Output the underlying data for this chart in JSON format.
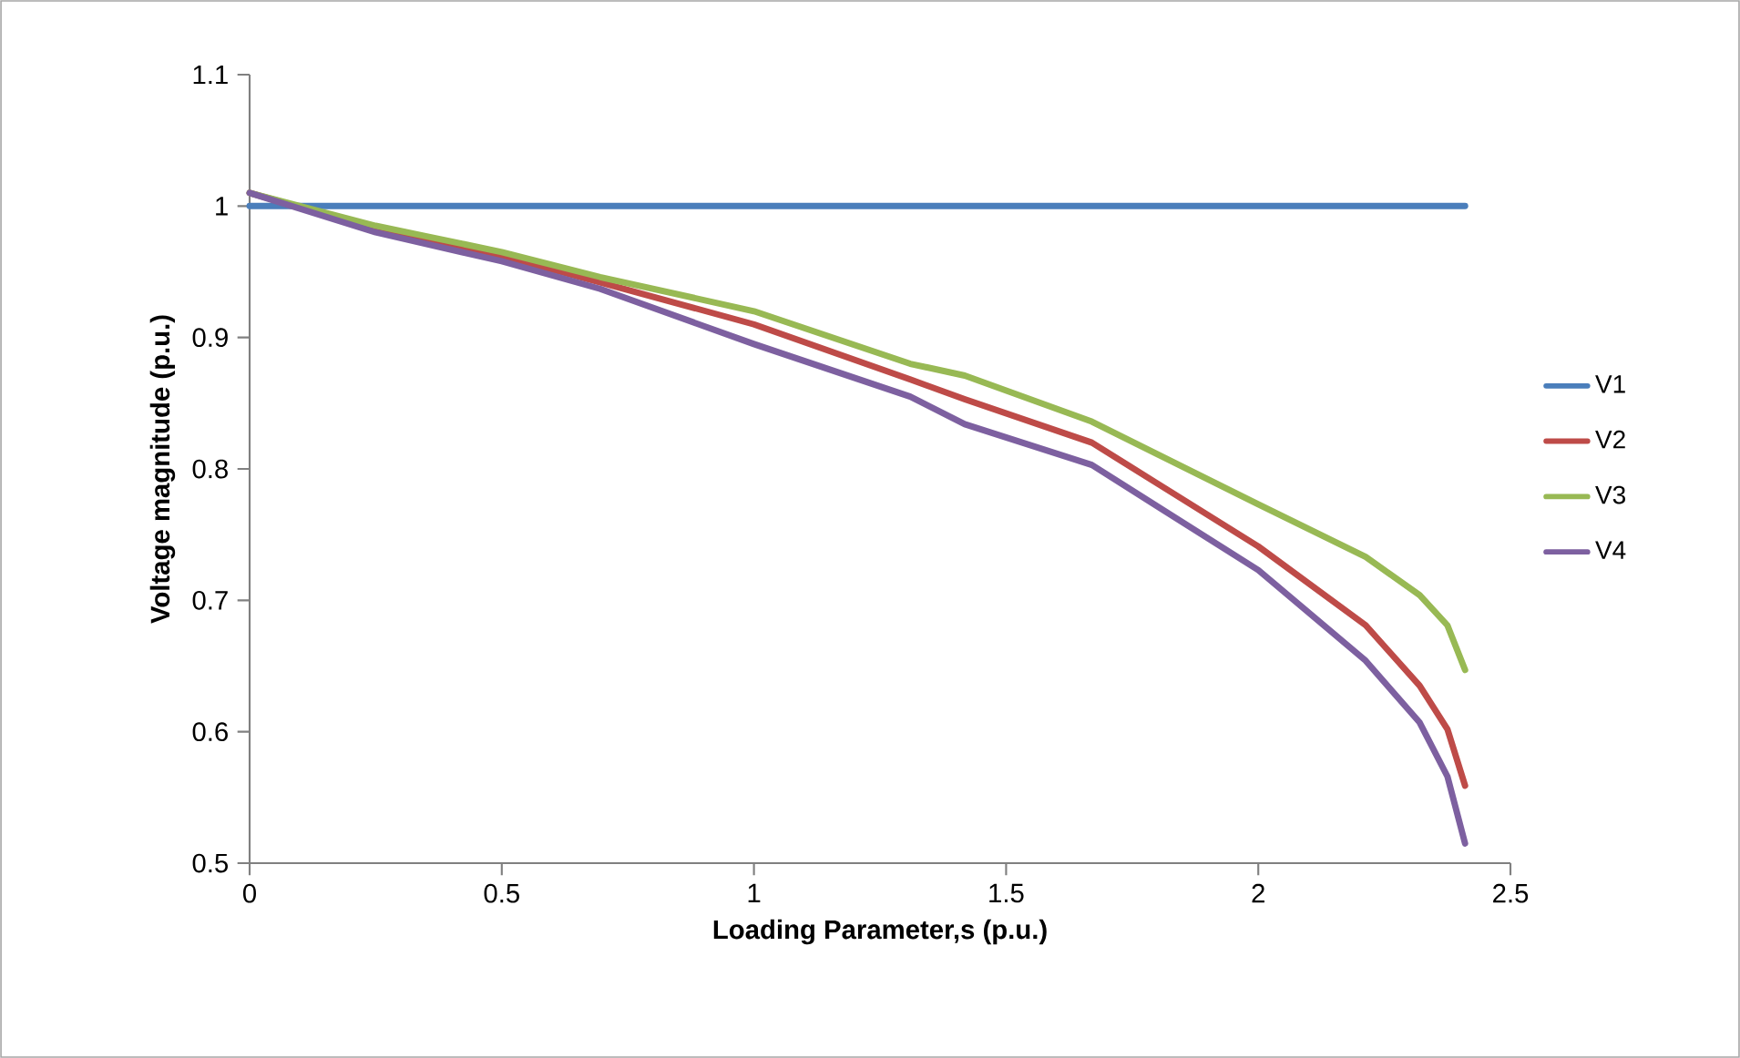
{
  "chart_data": {
    "type": "line",
    "xlabel": "Loading Parameter,s (p.u.)",
    "ylabel": "Voltage magnitude (p.u.)",
    "x": [
      0,
      0.25,
      0.5,
      0.695,
      1.0,
      1.31,
      1.418,
      1.67,
      2.0,
      2.213,
      2.32,
      2.375,
      2.41
    ],
    "series": [
      {
        "name": "V1",
        "color": "#4a7ebb",
        "values": [
          1,
          1,
          1,
          1,
          1,
          1,
          1,
          1,
          1,
          1,
          1,
          1,
          1
        ]
      },
      {
        "name": "V2",
        "color": "#be4b48",
        "values": [
          1.01,
          0.983,
          0.962,
          0.942,
          0.91,
          0.868,
          0.853,
          0.82,
          0.741,
          0.681,
          0.635,
          0.602,
          0.559
        ]
      },
      {
        "name": "V3",
        "color": "#98b954",
        "values": [
          1.01,
          0.985,
          0.965,
          0.946,
          0.92,
          0.88,
          0.871,
          0.836,
          0.773,
          0.733,
          0.704,
          0.681,
          0.647
        ]
      },
      {
        "name": "V4",
        "color": "#7d60a0",
        "values": [
          1.01,
          0.98,
          0.958,
          0.937,
          0.895,
          0.855,
          0.834,
          0.803,
          0.723,
          0.654,
          0.607,
          0.566,
          0.515
        ]
      }
    ],
    "xlim": [
      0,
      2.5
    ],
    "ylim": [
      0.5,
      1.1
    ],
    "xticks": [
      0,
      0.5,
      1,
      1.5,
      2,
      2.5
    ],
    "yticks": [
      0.5,
      0.6,
      0.7,
      0.8,
      0.9,
      1,
      1.1
    ],
    "legend": "right",
    "grid": false,
    "marker": "none",
    "line_style": "solid"
  }
}
